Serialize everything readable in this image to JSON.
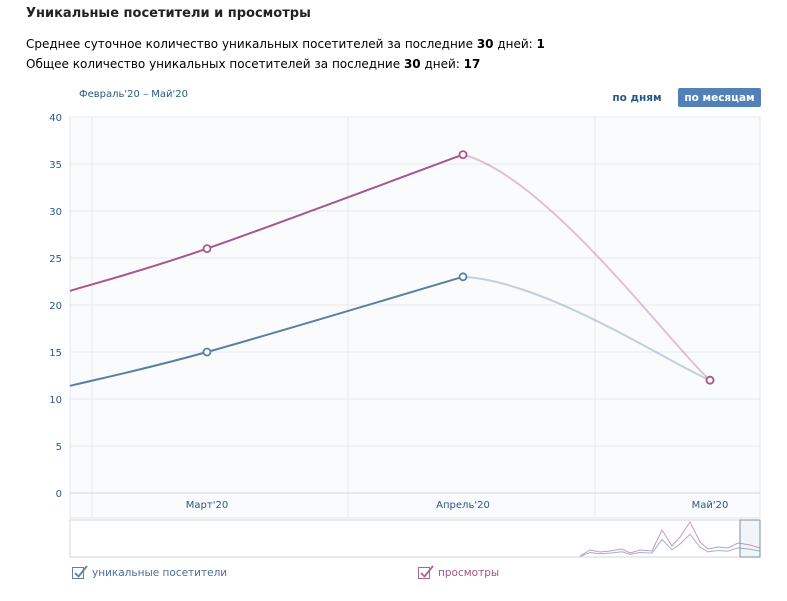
{
  "header": {
    "title": "Уникальные посетители и просмотры",
    "stat1": {
      "prefix": "Среднее суточное количество уникальных посетителей за последние ",
      "days": "30",
      "mid": " дней: ",
      "value": "1"
    },
    "stat2": {
      "prefix": "Общее количество уникальных посетителей за последние ",
      "days": "30",
      "mid": " дней: ",
      "value": "17"
    }
  },
  "controls": {
    "range_label": "Февраль'20 – Май'20",
    "by_days": "по дням",
    "by_months": "по месяцам",
    "active": "by_months"
  },
  "chart_data": {
    "type": "line",
    "categories": [
      "Март'20",
      "Апрель'20",
      "Май'20"
    ],
    "ylim": [
      0,
      40
    ],
    "yticks": [
      0,
      5,
      10,
      15,
      20,
      25,
      30,
      35,
      40
    ],
    "grid": true,
    "legend_position": "bottom-left",
    "series": [
      {
        "name": "уникальные посетители",
        "color": "#5a7ea6",
        "values": [
          15,
          23,
          12
        ]
      },
      {
        "name": "просмотры",
        "color": "#a8578c",
        "values": [
          26,
          36,
          12
        ]
      }
    ]
  },
  "legend": [
    {
      "label": "уникальные посетители",
      "checked": true,
      "color": "#5a7ea6"
    },
    {
      "label": "просмотры",
      "checked": true,
      "color": "#a8578c"
    }
  ],
  "colors": {
    "link": "#2a5885",
    "button_active_bg": "#5181b8",
    "grid": "#e7e8ec"
  }
}
